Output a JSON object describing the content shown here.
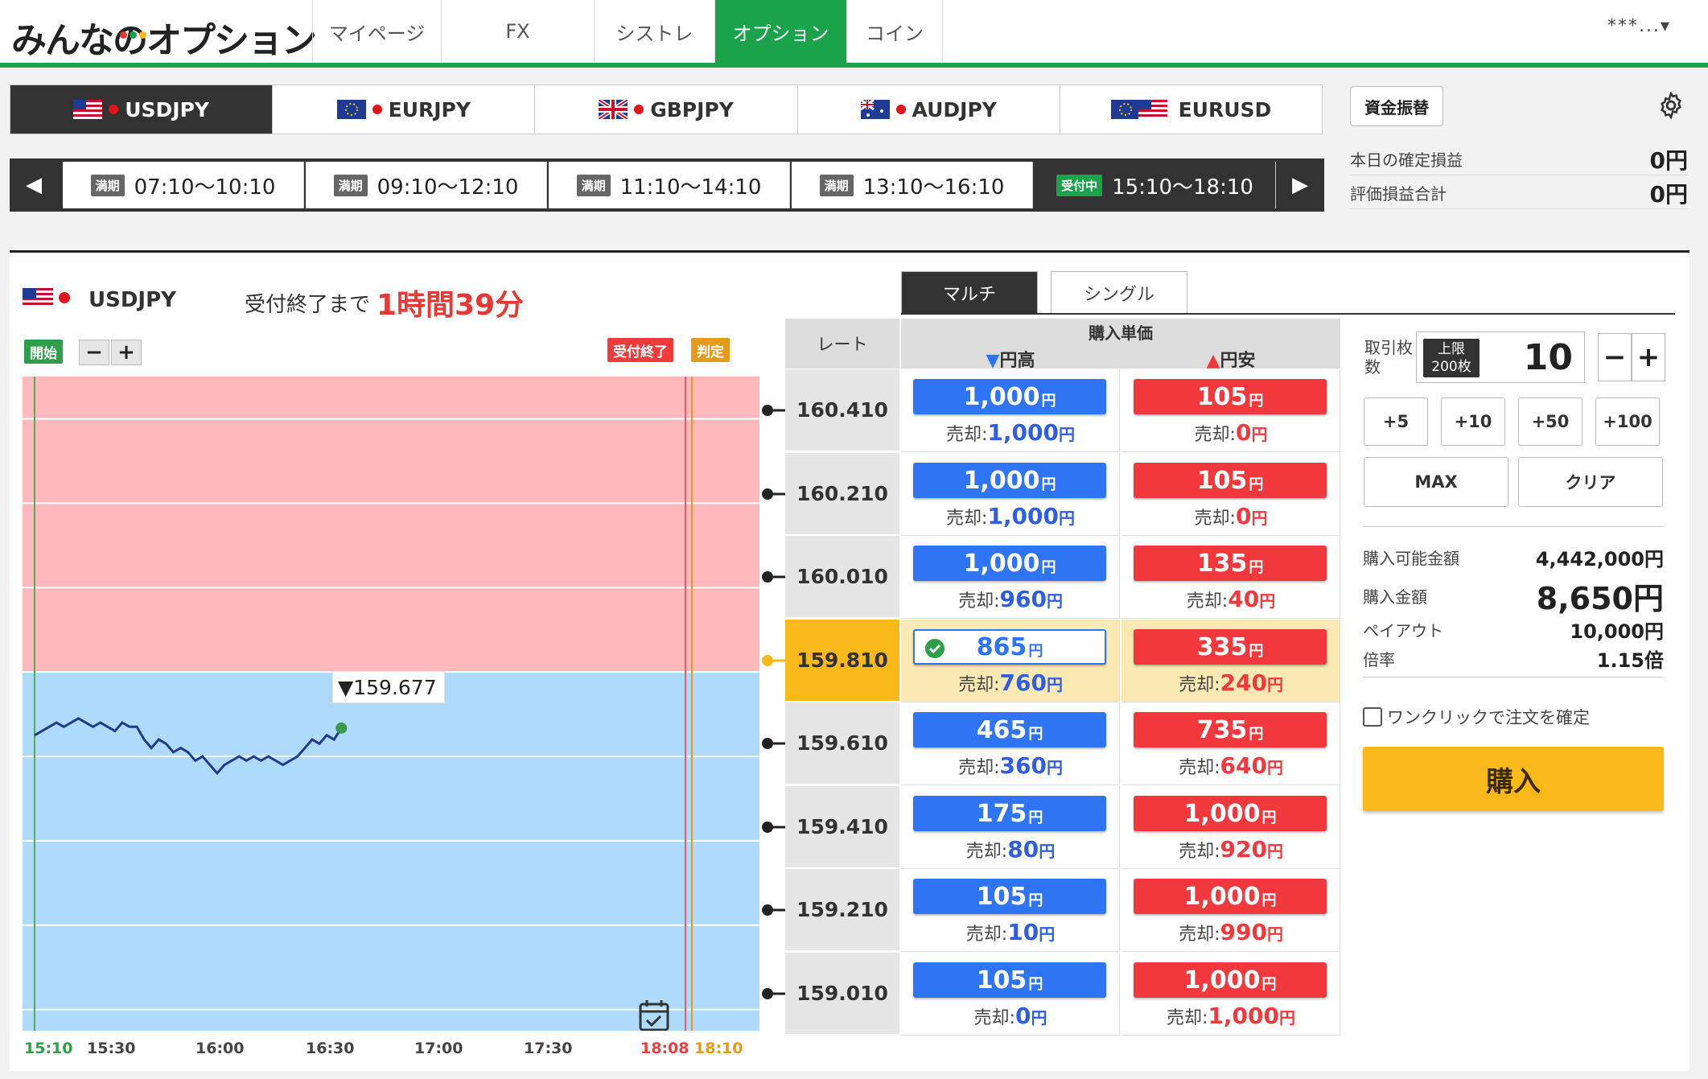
{
  "nav": {
    "logo": "みんなのオプション",
    "tabs": [
      {
        "label": "マイページ"
      },
      {
        "label": "FX"
      },
      {
        "label": "シストレ"
      },
      {
        "label": "オプション",
        "active": true
      },
      {
        "label": "コイン"
      }
    ],
    "user": "***...▾"
  },
  "pairs": [
    {
      "label": "USDJPY",
      "active": true,
      "flag": "us-jp-flag-icon"
    },
    {
      "label": "EURJPY",
      "flag": "eu-jp-flag-icon"
    },
    {
      "label": "GBPJPY",
      "flag": "gb-jp-flag-icon"
    },
    {
      "label": "AUDJPY",
      "flag": "au-jp-flag-icon"
    },
    {
      "label": "EURUSD",
      "flag": "eu-us-flag-icon"
    }
  ],
  "slots": [
    {
      "badge": "満期",
      "time": "07:10〜10:10"
    },
    {
      "badge": "満期",
      "time": "09:10〜12:10"
    },
    {
      "badge": "満期",
      "time": "11:10〜14:10"
    },
    {
      "badge": "満期",
      "time": "13:10〜16:10"
    },
    {
      "badge": "受付中",
      "time": "15:10〜18:10",
      "current": true
    }
  ],
  "summary": {
    "transfer_label": "資金振替",
    "realized_label": "本日の確定損益",
    "realized_value": "0円",
    "unrealized_label": "評価損益合計",
    "unrealized_value": "0円"
  },
  "chart_header": {
    "pair": "USDJPY",
    "deadline_label": "受付終了まで",
    "deadline_value": "1時間39分",
    "start_tag": "開始",
    "close_tag": "受付終了",
    "judge_tag": "判定",
    "zoom_out": "−",
    "zoom_in": "+"
  },
  "chart_data": {
    "type": "line",
    "current_rate_label": "▼159.677",
    "current_rate": 159.677,
    "x_ticks": [
      "15:10",
      "15:30",
      "16:00",
      "16:30",
      "17:00",
      "17:30",
      "18:08",
      "18:10"
    ],
    "y_range": [
      158.96,
      160.51
    ],
    "boundary_rate": 159.81,
    "price_series": [
      [
        "15:10",
        159.66
      ],
      [
        "15:12",
        159.67
      ],
      [
        "15:14",
        159.68
      ],
      [
        "15:16",
        159.69
      ],
      [
        "15:18",
        159.68
      ],
      [
        "15:20",
        159.69
      ],
      [
        "15:22",
        159.7
      ],
      [
        "15:24",
        159.69
      ],
      [
        "15:26",
        159.68
      ],
      [
        "15:28",
        159.69
      ],
      [
        "15:30",
        159.68
      ],
      [
        "15:32",
        159.67
      ],
      [
        "15:34",
        159.69
      ],
      [
        "15:36",
        159.68
      ],
      [
        "15:38",
        159.68
      ],
      [
        "15:40",
        159.65
      ],
      [
        "15:42",
        159.63
      ],
      [
        "15:44",
        159.65
      ],
      [
        "15:46",
        159.64
      ],
      [
        "15:48",
        159.62
      ],
      [
        "15:50",
        159.63
      ],
      [
        "15:52",
        159.62
      ],
      [
        "15:54",
        159.6
      ],
      [
        "15:56",
        159.61
      ],
      [
        "15:58",
        159.59
      ],
      [
        "16:00",
        159.57
      ],
      [
        "16:02",
        159.59
      ],
      [
        "16:04",
        159.6
      ],
      [
        "16:06",
        159.61
      ],
      [
        "16:08",
        159.6
      ],
      [
        "16:10",
        159.61
      ],
      [
        "16:12",
        159.6
      ],
      [
        "16:14",
        159.61
      ],
      [
        "16:16",
        159.6
      ],
      [
        "16:18",
        159.59
      ],
      [
        "16:20",
        159.6
      ],
      [
        "16:22",
        159.61
      ],
      [
        "16:24",
        159.63
      ],
      [
        "16:26",
        159.65
      ],
      [
        "16:28",
        159.64
      ],
      [
        "16:30",
        159.66
      ],
      [
        "16:32",
        159.65
      ],
      [
        "16:34",
        159.677
      ]
    ]
  },
  "board": {
    "tab_multi": "マルチ",
    "tab_single": "シングル",
    "rate_header": "レート",
    "price_header": "購入単価",
    "high_header": "▼円高",
    "low_header": "▲円安",
    "sell_prefix": "売却:",
    "unit": "円",
    "rows": [
      {
        "rate": "160.410",
        "high": "1,000",
        "high_sell": "1,000",
        "low": "105",
        "low_sell": "0"
      },
      {
        "rate": "160.210",
        "high": "1,000",
        "high_sell": "1,000",
        "low": "105",
        "low_sell": "0"
      },
      {
        "rate": "160.010",
        "high": "1,000",
        "high_sell": "960",
        "low": "135",
        "low_sell": "40"
      },
      {
        "rate": "159.810",
        "high": "865",
        "high_sell": "760",
        "low": "335",
        "low_sell": "240",
        "selected": true
      },
      {
        "rate": "159.610",
        "high": "465",
        "high_sell": "360",
        "low": "735",
        "low_sell": "640"
      },
      {
        "rate": "159.410",
        "high": "175",
        "high_sell": "80",
        "low": "1,000",
        "low_sell": "920"
      },
      {
        "rate": "159.210",
        "high": "105",
        "high_sell": "10",
        "low": "1,000",
        "low_sell": "990"
      },
      {
        "rate": "159.010",
        "high": "105",
        "high_sell": "0",
        "low": "1,000",
        "low_sell": "1,000"
      }
    ]
  },
  "order": {
    "qty_label": "取引枚数",
    "limit_badge_1": "上限",
    "limit_badge_2": "200枚",
    "qty": "10",
    "minus": "−",
    "plus": "+",
    "steps": [
      "+5",
      "+10",
      "+50",
      "+100"
    ],
    "max_label": "MAX",
    "clear_label": "クリア",
    "available_label": "購入可能金額",
    "available_value": "4,442,000円",
    "amount_label": "購入金額",
    "amount_value": "8,650円",
    "payout_label": "ペイアウト",
    "payout_value": "10,000円",
    "ratio_label": "倍率",
    "ratio_value": "1.15倍",
    "oneclick_label": "ワンクリックで注文を確定",
    "purchase_label": "購入"
  },
  "colors": {
    "brand_green": "#1aa34a",
    "buy_blue": "#2f74f2",
    "buy_red": "#f0383d",
    "accent_yellow": "#f9b91b",
    "upper_zone": "#ffb8bb",
    "lower_zone": "#aedafb"
  }
}
